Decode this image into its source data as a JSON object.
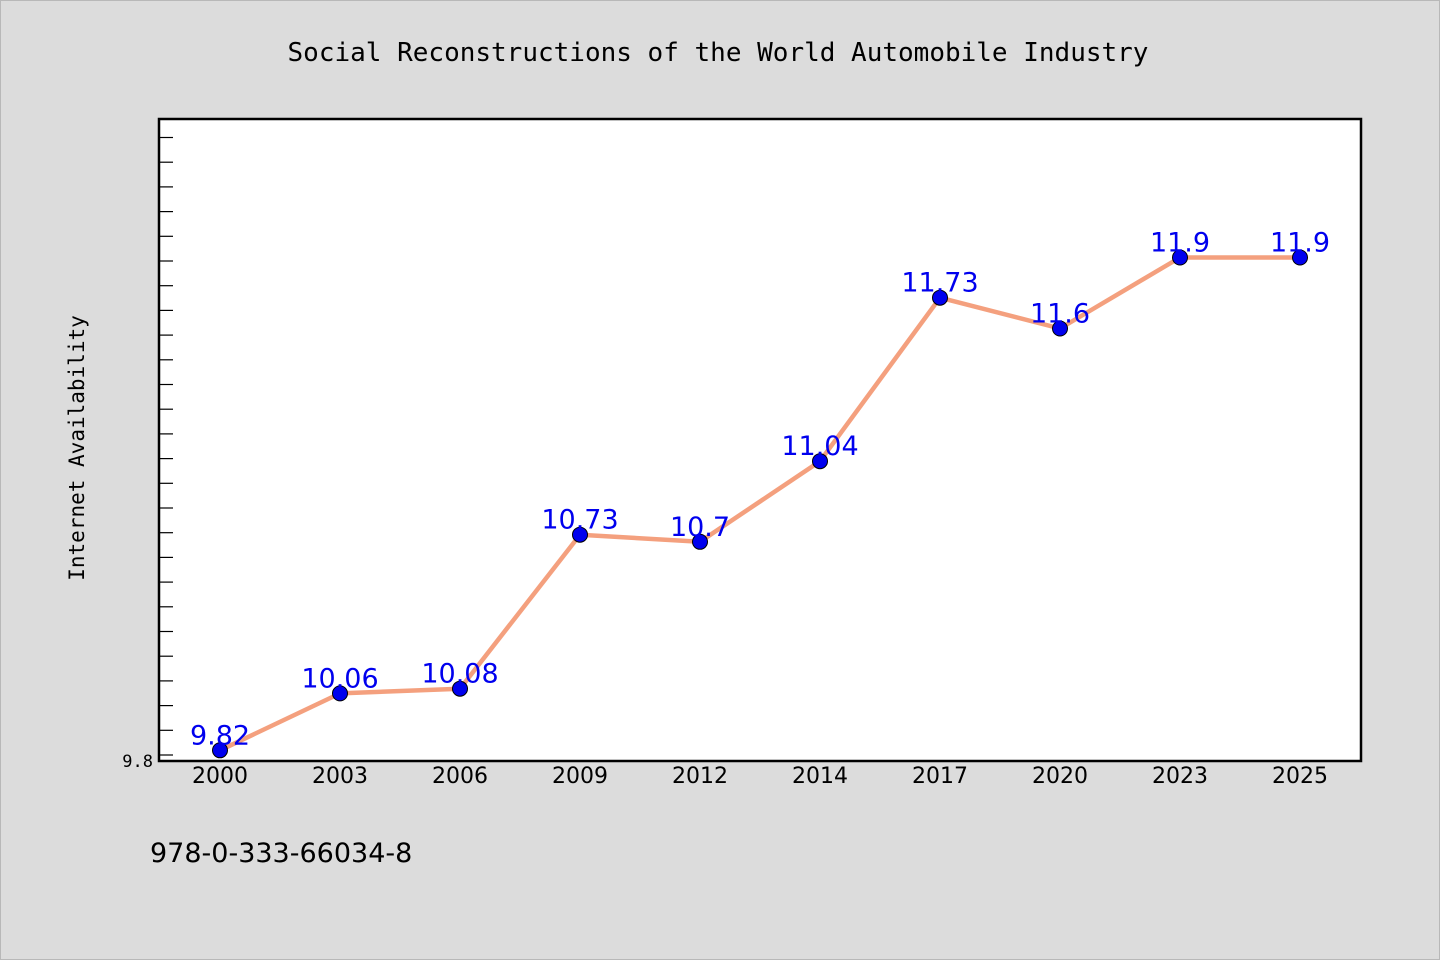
{
  "chart_data": {
    "type": "line",
    "title": "Social Reconstructions of the World Automobile Industry",
    "xlabel": "",
    "ylabel": "Internet Availability",
    "categories": [
      "2000",
      "2003",
      "2006",
      "2009",
      "2012",
      "2014",
      "2017",
      "2020",
      "2023",
      "2025"
    ],
    "series": [
      {
        "values": [
          9.82,
          10.06,
          10.08,
          10.73,
          10.7,
          11.04,
          11.73,
          11.6,
          11.9,
          11.9
        ],
        "data_labels": [
          "9.82",
          "10.06",
          "10.08",
          "10.73",
          "10.7",
          "11.04",
          "11.73",
          "11.6",
          "11.9",
          "11.9"
        ],
        "line_color": "#f4a07e",
        "marker_color": "#0000ee",
        "label_color": "#0000ee"
      }
    ],
    "ylim": [
      9.8,
      12.4
    ],
    "ytick_labels": [
      "9.8"
    ],
    "grid": false,
    "legend": "none"
  },
  "footer": {
    "isbn": "978-0-333-66034-8"
  },
  "colors": {
    "background": "#dcdcdc",
    "plot_background": "#ffffff",
    "axes": "#000000"
  }
}
